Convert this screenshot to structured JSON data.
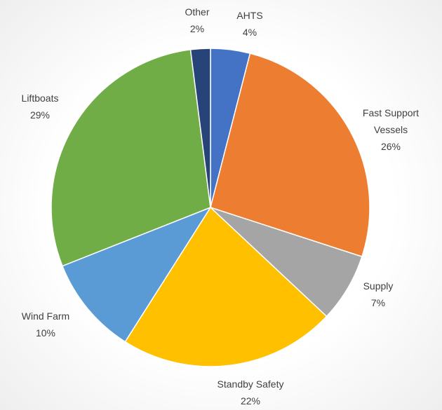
{
  "chart_data": {
    "type": "pie",
    "title": "",
    "legend": "none",
    "slices": [
      {
        "label": "AHTS",
        "value": 4,
        "display": "4%",
        "color": "#4472C4"
      },
      {
        "label": "Fast Support Vessels",
        "label_lines": [
          "Fast Support",
          "Vessels"
        ],
        "value": 26,
        "display": "26%",
        "color": "#ED7D31"
      },
      {
        "label": "Supply",
        "value": 7,
        "display": "7%",
        "color": "#A5A5A5"
      },
      {
        "label": "Standby Safety",
        "value": 22,
        "display": "22%",
        "color": "#FFC000"
      },
      {
        "label": "Wind Farm",
        "value": 10,
        "display": "10%",
        "color": "#5B9BD5"
      },
      {
        "label": "Liftboats",
        "value": 29,
        "display": "29%",
        "color": "#70AD47"
      },
      {
        "label": "Other",
        "value": 2,
        "display": "2%",
        "color": "#264478"
      }
    ]
  }
}
